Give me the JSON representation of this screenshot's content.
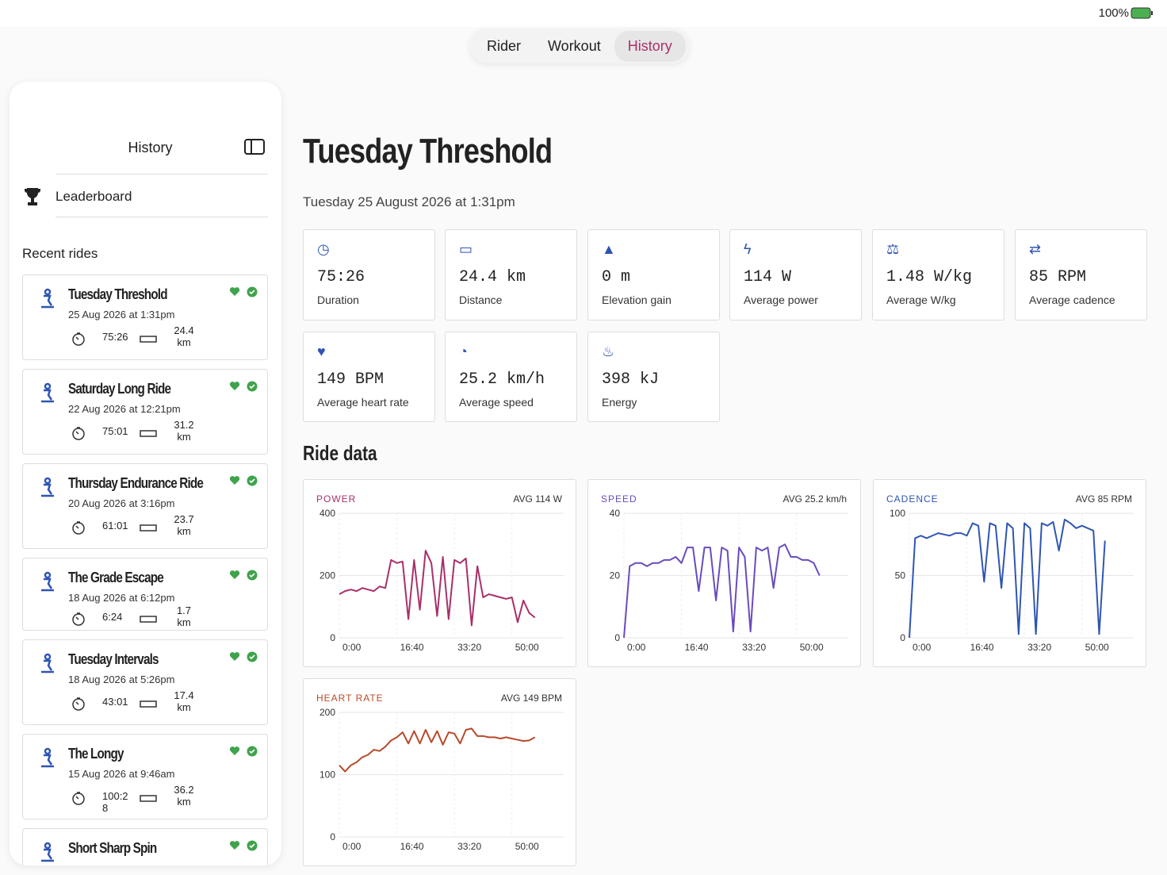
{
  "status_bar": {
    "battery": "100%"
  },
  "tabs": [
    "Rider",
    "Workout",
    "History"
  ],
  "sidebar": {
    "title": "History",
    "leaderboard": "Leaderboard",
    "section": "Recent rides",
    "rides": [
      {
        "title": "Tuesday Threshold",
        "date": "25 Aug 2026 at 1:31pm",
        "duration": "75:26",
        "distance": "24.4 km"
      },
      {
        "title": "Saturday Long Ride",
        "date": "22 Aug 2026 at 12:21pm",
        "duration": "75:01",
        "distance": "31.2 km"
      },
      {
        "title": "Thursday Endurance Ride",
        "date": "20 Aug 2026 at 3:16pm",
        "duration": "61:01",
        "distance": "23.7 km"
      },
      {
        "title": "The Grade Escape",
        "date": "18 Aug 2026 at 6:12pm",
        "duration": "6:24",
        "distance": "1.7 km"
      },
      {
        "title": "Tuesday Intervals",
        "date": "18 Aug 2026 at 5:26pm",
        "duration": "43:01",
        "distance": "17.4 km"
      },
      {
        "title": "The Longy",
        "date": "15 Aug 2026 at 9:46am",
        "duration": "100:28",
        "distance": "36.2 km"
      },
      {
        "title": "Short Sharp Spin"
      }
    ]
  },
  "ride": {
    "title": "Tuesday Threshold",
    "subtitle": "Tuesday 25 August 2026 at 1:31pm",
    "section": "Ride data",
    "stats": [
      {
        "value": "75:26",
        "label": "Duration"
      },
      {
        "value": "24.4 km",
        "label": "Distance"
      },
      {
        "value": "0 m",
        "label": "Elevation gain"
      },
      {
        "value": "114 W",
        "label": "Average power"
      },
      {
        "value": "1.48 W/kg",
        "label": "Average W/kg"
      },
      {
        "value": "85 RPM",
        "label": "Average cadence"
      },
      {
        "value": "149 BPM",
        "label": "Average heart rate"
      },
      {
        "value": "25.2 km/h",
        "label": "Average speed"
      },
      {
        "value": "398 kJ",
        "label": "Energy"
      }
    ]
  },
  "charts": [
    {
      "type": "line",
      "title": "POWER",
      "avg": "AVG 114 W",
      "color": "#a8306a",
      "xlim": [
        0,
        3900
      ],
      "ylim": [
        0,
        400
      ],
      "yticks": [
        0,
        200,
        400
      ],
      "xticks": [
        {
          "value": 0,
          "label": "0:00"
        },
        {
          "value": 1000,
          "label": "16:40"
        },
        {
          "value": 2000,
          "label": "33:20"
        },
        {
          "value": 3000,
          "label": "50:00"
        }
      ],
      "x": [
        0,
        100,
        200,
        300,
        400,
        500,
        600,
        700,
        800,
        900,
        1000,
        1100,
        1200,
        1300,
        1400,
        1500,
        1600,
        1700,
        1800,
        1900,
        2000,
        2100,
        2200,
        2300,
        2400,
        2500,
        2600,
        2700,
        2800,
        2900,
        3000,
        3100,
        3200,
        3300,
        3400
      ],
      "values": [
        140,
        150,
        155,
        150,
        160,
        155,
        150,
        165,
        160,
        250,
        240,
        245,
        60,
        250,
        90,
        280,
        240,
        70,
        260,
        60,
        250,
        240,
        255,
        40,
        230,
        130,
        140,
        135,
        130,
        125,
        130,
        50,
        120,
        80,
        65
      ]
    },
    {
      "type": "line",
      "title": "SPEED",
      "avg": "AVG 25.2 km/h",
      "color": "#6a4bbd",
      "xlim": [
        0,
        3900
      ],
      "ylim": [
        0,
        40
      ],
      "yticks": [
        0,
        20,
        40
      ],
      "xticks": [
        {
          "value": 0,
          "label": "0:00"
        },
        {
          "value": 1000,
          "label": "16:40"
        },
        {
          "value": 2000,
          "label": "33:20"
        },
        {
          "value": 3000,
          "label": "50:00"
        }
      ],
      "x": [
        0,
        100,
        200,
        300,
        400,
        500,
        600,
        700,
        800,
        900,
        1000,
        1100,
        1200,
        1300,
        1400,
        1500,
        1600,
        1700,
        1800,
        1900,
        2000,
        2100,
        2200,
        2300,
        2400,
        2500,
        2600,
        2700,
        2800,
        2900,
        3000,
        3100,
        3200,
        3300,
        3400
      ],
      "values": [
        0,
        23,
        24,
        24,
        23,
        24,
        24,
        25,
        25,
        26,
        24,
        29,
        29,
        15,
        29,
        29,
        12,
        29,
        28,
        2,
        29,
        26,
        2,
        29,
        28,
        29,
        16,
        29,
        30,
        26,
        26,
        25,
        25,
        24,
        20
      ]
    },
    {
      "type": "line",
      "title": "CADENCE",
      "avg": "AVG 85 RPM",
      "color": "#2f55b3",
      "xlim": [
        0,
        3900
      ],
      "ylim": [
        0,
        100
      ],
      "yticks": [
        0,
        50,
        100
      ],
      "xticks": [
        {
          "value": 0,
          "label": "0:00"
        },
        {
          "value": 1000,
          "label": "16:40"
        },
        {
          "value": 2000,
          "label": "33:20"
        },
        {
          "value": 3000,
          "label": "50:00"
        }
      ],
      "x": [
        0,
        100,
        200,
        300,
        400,
        500,
        600,
        700,
        800,
        900,
        1000,
        1100,
        1200,
        1300,
        1400,
        1500,
        1600,
        1700,
        1800,
        1900,
        2000,
        2100,
        2200,
        2300,
        2400,
        2500,
        2600,
        2700,
        2800,
        2900,
        3000,
        3100,
        3200,
        3300,
        3400
      ],
      "values": [
        0,
        80,
        82,
        80,
        82,
        84,
        83,
        82,
        84,
        84,
        82,
        92,
        90,
        45,
        92,
        90,
        40,
        92,
        88,
        3,
        92,
        88,
        3,
        92,
        90,
        93,
        70,
        95,
        92,
        88,
        90,
        88,
        86,
        3,
        78
      ]
    },
    {
      "type": "line",
      "title": "HEART RATE",
      "avg": "AVG 149 BPM",
      "color": "#b84a2a",
      "xlim": [
        0,
        3900
      ],
      "ylim": [
        0,
        200
      ],
      "yticks": [
        0,
        100,
        200
      ],
      "xticks": [
        {
          "value": 0,
          "label": "0:00"
        },
        {
          "value": 1000,
          "label": "16:40"
        },
        {
          "value": 2000,
          "label": "33:20"
        },
        {
          "value": 3000,
          "label": "50:00"
        }
      ],
      "x": [
        0,
        100,
        200,
        300,
        400,
        500,
        600,
        700,
        800,
        900,
        1000,
        1100,
        1200,
        1300,
        1400,
        1500,
        1600,
        1700,
        1800,
        1900,
        2000,
        2100,
        2200,
        2300,
        2400,
        2500,
        2600,
        2700,
        2800,
        2900,
        3000,
        3100,
        3200,
        3300,
        3400
      ],
      "values": [
        115,
        105,
        115,
        120,
        128,
        132,
        140,
        138,
        145,
        155,
        160,
        168,
        150,
        170,
        150,
        172,
        152,
        170,
        148,
        168,
        166,
        150,
        172,
        174,
        162,
        162,
        160,
        160,
        158,
        160,
        158,
        156,
        154,
        155,
        160
      ]
    }
  ]
}
